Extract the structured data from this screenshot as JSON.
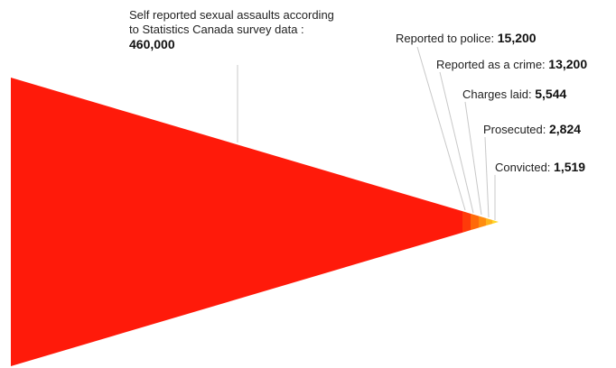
{
  "chart_data": {
    "type": "funnel",
    "title": "",
    "stages": [
      {
        "name": "Self reported sexual assaults according to Statistics Canada survey data :",
        "value": 460000,
        "value_label": "460,000",
        "color": "#ff1a0a"
      },
      {
        "name": "Reported to police:",
        "value": 15200,
        "value_label": "15,200",
        "color": "#ff3a0a"
      },
      {
        "name": "Reported as a crime:",
        "value": 13200,
        "value_label": "13,200",
        "color": "#ff6a0a"
      },
      {
        "name": "Charges laid:",
        "value": 5544,
        "value_label": "5,544",
        "color": "#ff8c0f"
      },
      {
        "name": "Prosecuted:",
        "value": 2824,
        "value_label": "2,824",
        "color": "#ffb31a"
      },
      {
        "name": "Convicted:",
        "value": 1519,
        "value_label": "1,519",
        "color": "#ffd52a"
      }
    ],
    "leader_line_color": "#c8c8c8"
  }
}
